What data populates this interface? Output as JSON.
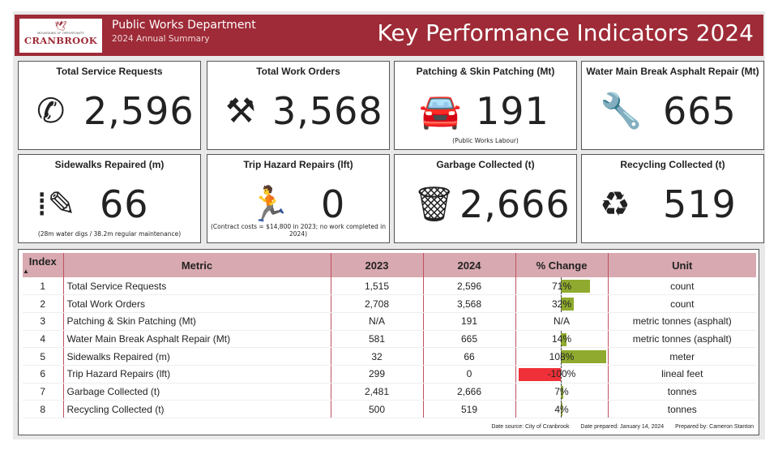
{
  "header": {
    "logo_tagline": "MOUNTAINS OF OPPORTUNITY",
    "logo_name": "CRANBROOK",
    "department": "Public Works Department",
    "subtitle": "2024 Annual Summary",
    "title": "Key Performance Indicators 2024"
  },
  "cards": [
    {
      "title": "Total Service Requests",
      "value": "2,596",
      "icon": "phone-icon",
      "glyph": "✆"
    },
    {
      "title": "Total Work Orders",
      "value": "3,568",
      "icon": "tools-icon",
      "glyph": "⚒"
    },
    {
      "title": "Patching & Skin Patching (Mt)",
      "value": "191",
      "icon": "car-icon",
      "glyph": "🚘",
      "note": "(Public Works Labour)"
    },
    {
      "title": "Water Main Break Asphalt Repair (Mt)",
      "value": "665",
      "icon": "wrench-icon",
      "glyph": "🔧"
    },
    {
      "title": "Sidewalks Repaired (m)",
      "value": "66",
      "icon": "sidewalk-icon",
      "glyph": "⁞✎",
      "note": "(28m water digs / 38.2m regular maintenance)"
    },
    {
      "title": "Trip Hazard Repairs (lft)",
      "value": "0",
      "icon": "person-tripping-icon",
      "glyph": "🏃",
      "note": "(Contract costs = $14,800 in 2023; no work completed in 2024)"
    },
    {
      "title": "Garbage Collected (t)",
      "value": "2,666",
      "icon": "trash-icon",
      "glyph": "🗑"
    },
    {
      "title": "Recycling Collected (t)",
      "value": "519",
      "icon": "recycle-icon",
      "glyph": "♻"
    }
  ],
  "table": {
    "headers": [
      "Index",
      "Metric",
      "2023",
      "2024",
      "% Change",
      "Unit"
    ],
    "rows": [
      {
        "index": "1",
        "metric": "Total Service Requests",
        "y2023": "1,515",
        "y2024": "2,596",
        "change": "71%",
        "pct": 71,
        "unit": "count"
      },
      {
        "index": "2",
        "metric": "Total Work Orders",
        "y2023": "2,708",
        "y2024": "3,568",
        "change": "32%",
        "pct": 32,
        "unit": "count"
      },
      {
        "index": "3",
        "metric": "Patching & Skin Patching (Mt)",
        "y2023": "N/A",
        "y2024": "191",
        "change": "N/A",
        "pct": null,
        "unit": "metric tonnes (asphalt)"
      },
      {
        "index": "4",
        "metric": "Water Main Break Asphalt Repair (Mt)",
        "y2023": "581",
        "y2024": "665",
        "change": "14%",
        "pct": 14,
        "unit": "metric tonnes (asphalt)"
      },
      {
        "index": "5",
        "metric": "Sidewalks Repaired (m)",
        "y2023": "32",
        "y2024": "66",
        "change": "108%",
        "pct": 108,
        "unit": "meter"
      },
      {
        "index": "6",
        "metric": "Trip Hazard Repairs (lft)",
        "y2023": "299",
        "y2024": "0",
        "change": "-100%",
        "pct": -100,
        "unit": "lineal feet"
      },
      {
        "index": "7",
        "metric": "Garbage Collected (t)",
        "y2023": "2,481",
        "y2024": "2,666",
        "change": "7%",
        "pct": 7,
        "unit": "tonnes"
      },
      {
        "index": "8",
        "metric": "Recycling Collected (t)",
        "y2023": "500",
        "y2024": "519",
        "change": "4%",
        "pct": 4,
        "unit": "tonnes"
      }
    ]
  },
  "colors": {
    "positive": "#8faa2e",
    "negative": "#f03038",
    "brand": "#9e2b37"
  },
  "footer": {
    "source": "Date source: City of Cranbrook",
    "prepared": "Date prepared: January 14, 2024",
    "by": "Prepared by: Cameron Stanton"
  }
}
